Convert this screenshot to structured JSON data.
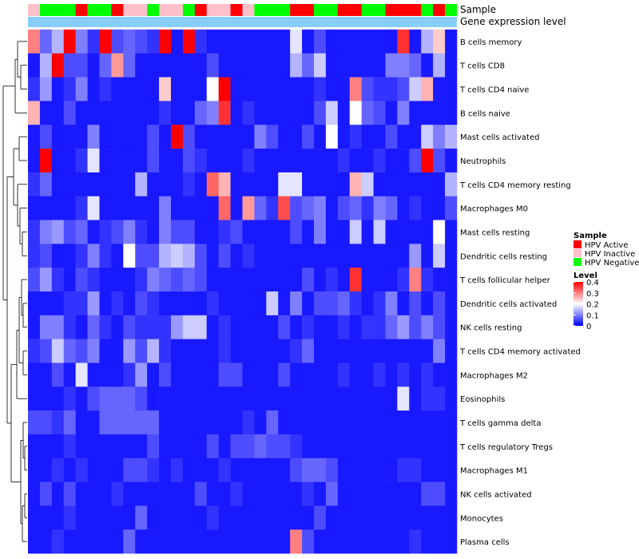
{
  "chart_data": {
    "type": "heatmap",
    "columns_count": 36,
    "annotation_tracks": {
      "sample": {
        "label": "Sample",
        "values": [
          "HPV Inactive",
          "HPV Negative",
          "HPV Negative",
          "HPV Negative",
          "HPV Active",
          "HPV Negative",
          "HPV Negative",
          "HPV Active",
          "HPV Inactive",
          "HPV Inactive",
          "HPV Negative",
          "HPV Inactive",
          "HPV Inactive",
          "HPV Negative",
          "HPV Active",
          "HPV Inactive",
          "HPV Inactive",
          "HPV Active",
          "HPV Inactive",
          "HPV Negative",
          "HPV Negative",
          "HPV Negative",
          "HPV Active",
          "HPV Active",
          "HPV Negative",
          "HPV Negative",
          "HPV Active",
          "HPV Active",
          "HPV Negative",
          "HPV Negative",
          "HPV Active",
          "HPV Active",
          "HPV Active",
          "HPV Negative",
          "HPV Active",
          "HPV Negative"
        ]
      },
      "gene_expression": {
        "label": "Gene expression level",
        "color": "#87CEFA"
      }
    },
    "rows": [
      "B cells memory",
      "T cells CD8",
      "T cells CD4 naive",
      "B cells naive",
      "Mast cells activated",
      "Neutrophils",
      "T cells CD4 memory resting",
      "Macrophages M0",
      "Mast cells resting",
      "Dendritic cells resting",
      "T cells follicular helper",
      "Dendritic cells activated",
      "NK cells resting",
      "T cells CD4 memory activated",
      "Macrophages M2",
      "Eosinophils",
      "T cells gamma delta",
      "T cells regulatory  Tregs",
      "Macrophages M1",
      "NK cells activated",
      "Monocytes",
      "Plasma cells"
    ],
    "values": [
      [
        0.3,
        0.08,
        0.14,
        0.4,
        0.1,
        0.04,
        0.4,
        0.06,
        0.08,
        0.06,
        0.04,
        0.4,
        0.02,
        0.4,
        0.04,
        0.02,
        0.02,
        0.02,
        0.02,
        0.02,
        0.02,
        0.02,
        0.18,
        0.02,
        0.06,
        0.02,
        0.02,
        0.02,
        0.02,
        0.02,
        0.02,
        0.36,
        0.02,
        0.14,
        0.24,
        0.02
      ],
      [
        0.02,
        0.14,
        0.4,
        0.06,
        0.06,
        0.02,
        0.08,
        0.28,
        0.08,
        0.02,
        0.02,
        0.02,
        0.02,
        0.02,
        0.02,
        0.06,
        0.02,
        0.02,
        0.02,
        0.02,
        0.02,
        0.02,
        0.14,
        0.08,
        0.16,
        0.02,
        0.02,
        0.02,
        0.02,
        0.02,
        0.1,
        0.1,
        0.08,
        0.02,
        0.14,
        0.02
      ],
      [
        0.04,
        0.12,
        0.02,
        0.04,
        0.1,
        0.02,
        0.04,
        0.02,
        0.02,
        0.02,
        0.02,
        0.24,
        0.02,
        0.02,
        0.02,
        0.2,
        0.4,
        0.02,
        0.02,
        0.02,
        0.02,
        0.02,
        0.02,
        0.02,
        0.04,
        0.02,
        0.02,
        0.3,
        0.06,
        0.04,
        0.04,
        0.06,
        0.16,
        0.26,
        0.02,
        0.02
      ],
      [
        0.26,
        0.02,
        0.02,
        0.06,
        0.02,
        0.02,
        0.02,
        0.02,
        0.02,
        0.02,
        0.02,
        0.04,
        0.02,
        0.02,
        0.08,
        0.1,
        0.36,
        0.02,
        0.04,
        0.02,
        0.02,
        0.02,
        0.02,
        0.02,
        0.06,
        0.16,
        0.02,
        0.2,
        0.08,
        0.06,
        0.02,
        0.1,
        0.02,
        0.02,
        0.02,
        0.02
      ],
      [
        0.02,
        0.06,
        0.02,
        0.02,
        0.02,
        0.1,
        0.02,
        0.02,
        0.02,
        0.02,
        0.06,
        0.02,
        0.4,
        0.06,
        0.02,
        0.02,
        0.02,
        0.02,
        0.02,
        0.1,
        0.06,
        0.02,
        0.02,
        0.06,
        0.02,
        0.2,
        0.02,
        0.04,
        0.02,
        0.02,
        0.06,
        0.02,
        0.02,
        0.16,
        0.1,
        0.14
      ],
      [
        0.02,
        0.4,
        0.02,
        0.02,
        0.04,
        0.18,
        0.02,
        0.02,
        0.02,
        0.02,
        0.06,
        0.02,
        0.02,
        0.06,
        0.04,
        0.02,
        0.02,
        0.02,
        0.04,
        0.02,
        0.02,
        0.02,
        0.02,
        0.02,
        0.02,
        0.02,
        0.04,
        0.02,
        0.02,
        0.04,
        0.02,
        0.02,
        0.06,
        0.4,
        0.06,
        0.02
      ],
      [
        0.04,
        0.08,
        0.02,
        0.02,
        0.02,
        0.02,
        0.02,
        0.02,
        0.02,
        0.14,
        0.02,
        0.02,
        0.02,
        0.04,
        0.02,
        0.32,
        0.26,
        0.02,
        0.02,
        0.02,
        0.02,
        0.18,
        0.18,
        0.02,
        0.02,
        0.02,
        0.02,
        0.26,
        0.16,
        0.02,
        0.02,
        0.02,
        0.02,
        0.02,
        0.02,
        0.14
      ],
      [
        0.02,
        0.02,
        0.02,
        0.02,
        0.04,
        0.18,
        0.02,
        0.02,
        0.02,
        0.02,
        0.02,
        0.1,
        0.02,
        0.02,
        0.02,
        0.02,
        0.32,
        0.02,
        0.28,
        0.08,
        0.04,
        0.34,
        0.06,
        0.08,
        0.1,
        0.02,
        0.06,
        0.08,
        0.04,
        0.1,
        0.08,
        0.02,
        0.04,
        0.02,
        0.02,
        0.06
      ],
      [
        0.04,
        0.1,
        0.12,
        0.06,
        0.08,
        0.02,
        0.04,
        0.06,
        0.1,
        0.04,
        0.02,
        0.1,
        0.06,
        0.06,
        0.02,
        0.02,
        0.04,
        0.06,
        0.02,
        0.02,
        0.02,
        0.02,
        0.06,
        0.02,
        0.1,
        0.02,
        0.02,
        0.16,
        0.02,
        0.16,
        0.02,
        0.02,
        0.02,
        0.02,
        0.2,
        0.02
      ],
      [
        0.04,
        0.06,
        0.02,
        0.02,
        0.04,
        0.1,
        0.04,
        0.02,
        0.2,
        0.06,
        0.06,
        0.14,
        0.16,
        0.14,
        0.06,
        0.02,
        0.06,
        0.02,
        0.04,
        0.02,
        0.02,
        0.02,
        0.02,
        0.02,
        0.02,
        0.02,
        0.02,
        0.02,
        0.02,
        0.02,
        0.02,
        0.02,
        0.12,
        0.02,
        0.16,
        0.02
      ],
      [
        0.06,
        0.12,
        0.04,
        0.02,
        0.06,
        0.04,
        0.02,
        0.02,
        0.02,
        0.04,
        0.1,
        0.08,
        0.06,
        0.08,
        0.06,
        0.02,
        0.02,
        0.02,
        0.02,
        0.02,
        0.02,
        0.02,
        0.02,
        0.06,
        0.02,
        0.04,
        0.02,
        0.36,
        0.02,
        0.02,
        0.02,
        0.04,
        0.3,
        0.04,
        0.02,
        0.02
      ],
      [
        0.02,
        0.02,
        0.02,
        0.04,
        0.04,
        0.12,
        0.02,
        0.04,
        0.02,
        0.06,
        0.04,
        0.02,
        0.02,
        0.02,
        0.02,
        0.04,
        0.02,
        0.02,
        0.02,
        0.02,
        0.16,
        0.02,
        0.1,
        0.02,
        0.06,
        0.06,
        0.08,
        0.04,
        0.02,
        0.04,
        0.1,
        0.02,
        0.06,
        0.02,
        0.06,
        0.02
      ],
      [
        0.02,
        0.1,
        0.1,
        0.04,
        0.02,
        0.08,
        0.04,
        0.02,
        0.06,
        0.04,
        0.04,
        0.04,
        0.12,
        0.16,
        0.16,
        0.02,
        0.04,
        0.02,
        0.02,
        0.02,
        0.02,
        0.06,
        0.02,
        0.04,
        0.02,
        0.02,
        0.04,
        0.02,
        0.04,
        0.04,
        0.08,
        0.12,
        0.06,
        0.1,
        0.06,
        0.02
      ],
      [
        0.04,
        0.06,
        0.16,
        0.08,
        0.06,
        0.1,
        0.02,
        0.02,
        0.12,
        0.06,
        0.14,
        0.04,
        0.02,
        0.02,
        0.02,
        0.02,
        0.04,
        0.02,
        0.02,
        0.02,
        0.02,
        0.02,
        0.04,
        0.08,
        0.02,
        0.02,
        0.02,
        0.02,
        0.02,
        0.02,
        0.02,
        0.02,
        0.02,
        0.02,
        0.1,
        0.02
      ],
      [
        0.02,
        0.02,
        0.06,
        0.02,
        0.18,
        0.02,
        0.02,
        0.02,
        0.04,
        0.12,
        0.02,
        0.06,
        0.02,
        0.02,
        0.02,
        0.02,
        0.06,
        0.06,
        0.02,
        0.02,
        0.02,
        0.06,
        0.02,
        0.02,
        0.02,
        0.02,
        0.04,
        0.02,
        0.02,
        0.04,
        0.02,
        0.04,
        0.02,
        0.04,
        0.02,
        0.02
      ],
      [
        0.02,
        0.02,
        0.02,
        0.04,
        0.02,
        0.06,
        0.08,
        0.08,
        0.08,
        0.06,
        0.02,
        0.02,
        0.02,
        0.02,
        0.02,
        0.02,
        0.02,
        0.02,
        0.02,
        0.02,
        0.02,
        0.02,
        0.02,
        0.02,
        0.02,
        0.02,
        0.02,
        0.02,
        0.02,
        0.02,
        0.02,
        0.18,
        0.02,
        0.04,
        0.04,
        0.02
      ],
      [
        0.06,
        0.06,
        0.04,
        0.08,
        0.02,
        0.02,
        0.08,
        0.08,
        0.08,
        0.08,
        0.08,
        0.02,
        0.02,
        0.02,
        0.02,
        0.02,
        0.02,
        0.02,
        0.04,
        0.02,
        0.08,
        0.02,
        0.02,
        0.02,
        0.02,
        0.02,
        0.02,
        0.02,
        0.02,
        0.02,
        0.02,
        0.02,
        0.02,
        0.02,
        0.02,
        0.02
      ],
      [
        0.02,
        0.02,
        0.02,
        0.04,
        0.02,
        0.02,
        0.02,
        0.02,
        0.02,
        0.02,
        0.06,
        0.02,
        0.02,
        0.02,
        0.02,
        0.06,
        0.02,
        0.06,
        0.06,
        0.08,
        0.06,
        0.06,
        0.04,
        0.02,
        0.02,
        0.02,
        0.02,
        0.02,
        0.02,
        0.02,
        0.02,
        0.02,
        0.02,
        0.02,
        0.02,
        0.02
      ],
      [
        0.02,
        0.02,
        0.04,
        0.02,
        0.04,
        0.02,
        0.02,
        0.02,
        0.06,
        0.06,
        0.04,
        0.02,
        0.04,
        0.02,
        0.02,
        0.02,
        0.04,
        0.02,
        0.02,
        0.02,
        0.02,
        0.02,
        0.06,
        0.08,
        0.08,
        0.06,
        0.02,
        0.02,
        0.02,
        0.02,
        0.02,
        0.04,
        0.04,
        0.02,
        0.02,
        0.02
      ],
      [
        0.02,
        0.06,
        0.02,
        0.06,
        0.02,
        0.02,
        0.02,
        0.04,
        0.02,
        0.02,
        0.02,
        0.02,
        0.02,
        0.02,
        0.06,
        0.02,
        0.02,
        0.04,
        0.02,
        0.02,
        0.02,
        0.02,
        0.02,
        0.04,
        0.02,
        0.08,
        0.02,
        0.02,
        0.02,
        0.02,
        0.02,
        0.02,
        0.02,
        0.06,
        0.06,
        0.02
      ],
      [
        0.02,
        0.02,
        0.02,
        0.04,
        0.02,
        0.02,
        0.02,
        0.02,
        0.02,
        0.08,
        0.02,
        0.02,
        0.02,
        0.02,
        0.02,
        0.04,
        0.02,
        0.02,
        0.02,
        0.02,
        0.02,
        0.02,
        0.02,
        0.02,
        0.06,
        0.02,
        0.02,
        0.02,
        0.02,
        0.02,
        0.02,
        0.02,
        0.02,
        0.02,
        0.02,
        0.02
      ],
      [
        0.02,
        0.02,
        0.04,
        0.02,
        0.02,
        0.02,
        0.02,
        0.02,
        0.08,
        0.02,
        0.02,
        0.02,
        0.02,
        0.02,
        0.02,
        0.02,
        0.02,
        0.02,
        0.02,
        0.02,
        0.02,
        0.02,
        0.3,
        0.06,
        0.02,
        0.02,
        0.02,
        0.02,
        0.02,
        0.02,
        0.02,
        0.02,
        0.04,
        0.02,
        0.02,
        0.02
      ]
    ],
    "legend": {
      "sample_title": "Sample",
      "sample_entries": [
        {
          "name": "HPV Active",
          "color": "#FF0000"
        },
        {
          "name": "HPV Inactive",
          "color": "#FFC0CB"
        },
        {
          "name": "HPV Negative",
          "color": "#00FF00"
        }
      ],
      "level_title": "Level",
      "level_ticks": [
        "0.4",
        "0.3",
        "0.2",
        "0.1",
        "0"
      ],
      "level_range": [
        0,
        0.4
      ],
      "color_low": "#0000FF",
      "color_mid": "#FFFFFF",
      "color_high": "#FF0000",
      "placement": "right"
    },
    "dendrogram": "rows-left",
    "grid": false
  }
}
